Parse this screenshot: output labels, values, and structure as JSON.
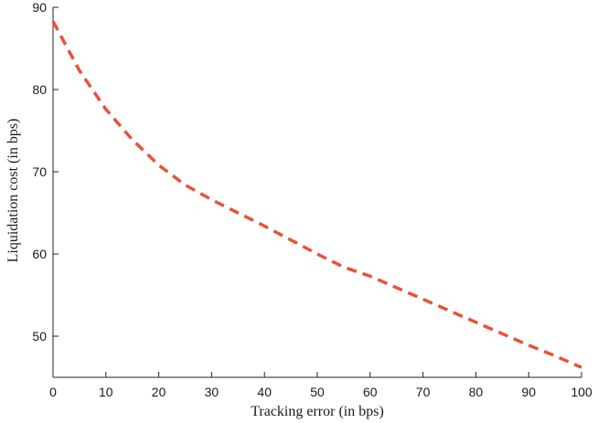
{
  "chart_data": {
    "type": "line",
    "title": "",
    "xlabel": "Tracking error (in bps)",
    "ylabel": "Liquidation cost (in bps)",
    "xlim": [
      0,
      100
    ],
    "ylim": [
      45,
      90
    ],
    "xticks": [
      0,
      10,
      20,
      30,
      40,
      50,
      60,
      70,
      80,
      90,
      100
    ],
    "yticks": [
      50,
      60,
      70,
      80,
      90
    ],
    "grid": false,
    "box": false,
    "series": [
      {
        "color": "#e8533a",
        "line_style": "dashed",
        "x": [
          0,
          5,
          10,
          15,
          20,
          25,
          30,
          35,
          40,
          45,
          50,
          55,
          60,
          65,
          70,
          75,
          80,
          85,
          90,
          95,
          100
        ],
        "y": [
          88.3,
          82.3,
          77.6,
          73.9,
          70.8,
          68.4,
          66.6,
          65.0,
          63.4,
          61.7,
          60.0,
          58.4,
          57.3,
          55.9,
          54.5,
          53.1,
          51.7,
          50.3,
          48.9,
          47.6,
          46.2
        ]
      }
    ]
  }
}
